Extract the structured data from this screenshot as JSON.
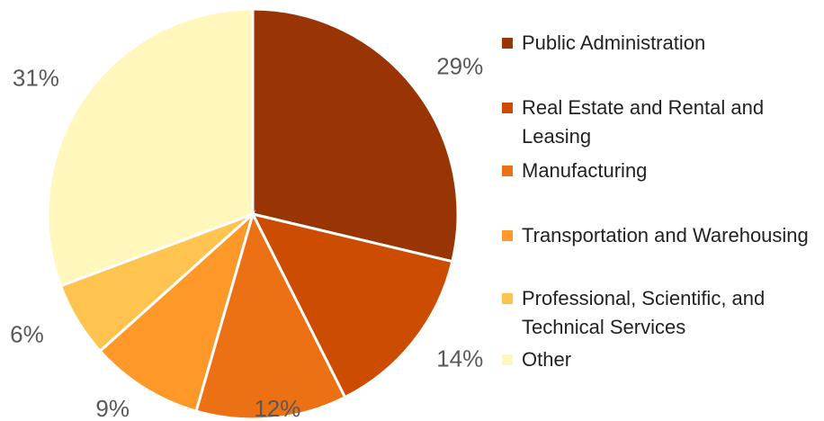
{
  "chart_data": {
    "type": "pie",
    "categories": [
      "Public Administration",
      "Real Estate and Rental and Leasing",
      "Manufacturing",
      "Transportation and Warehousing",
      "Professional, Scientific, and Technical Services",
      "Other"
    ],
    "values": [
      29,
      14,
      12,
      9,
      6,
      31
    ],
    "value_labels": [
      "29%",
      "14%",
      "12%",
      "9%",
      "6%",
      "31%"
    ],
    "colors": [
      "#993404",
      "#cc4c02",
      "#ec7014",
      "#fe9929",
      "#fec44f",
      "#fff7bc"
    ]
  }
}
